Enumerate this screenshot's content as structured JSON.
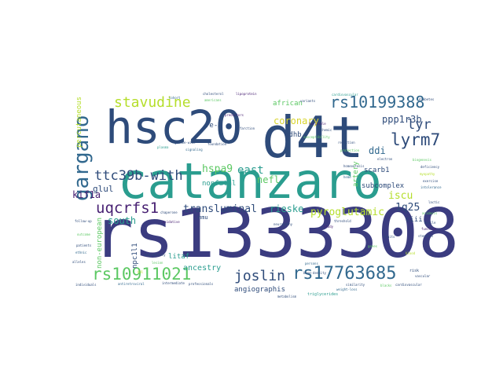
{
  "colors": {
    "background": "#ffffff",
    "dark_blue": "#2e4b7a",
    "navy": "#3b3c80",
    "teal": "#2a9d8f",
    "green": "#5cc863",
    "lime": "#b5de2b",
    "yellow": "#d8d42e",
    "purple": "#482173",
    "mid_blue": "#31688e"
  },
  "words": {
    "rs1333308": "rs1333308",
    "catanzaro": "catanzaro",
    "hsc20": "hsc20",
    "d4t": "d4t",
    "gargano": "gargano",
    "stavudine": "stavudine",
    "rs10199388": "rs10199388",
    "lyrm7": "lyrm7",
    "lyr": "lyr",
    "ttc39b_with": "ttc39b-with",
    "uqcrfs1": "uqcrfs1",
    "rs10911021": "rs10911021",
    "joslin": "joslin",
    "rs17763685": "rs17763685",
    "coronary": "coronary",
    "pyroglutamic": "pyroglutamic",
    "transluminal": "transluminal",
    "hspa9": "hspa9",
    "east": "east",
    "nefl": "nefl",
    "rieske": "rieske",
    "kif1a": "kif1a",
    "glul": "glul",
    "south": "south",
    "iscu": "iscu",
    "ddi": "ddi",
    "ppp1r3b": "ppp1r3b",
    "1q25": "1q25",
    "sdhb": "sdhb",
    "african": "african",
    "angiographis": "angiographis",
    "ancestry": "ancestry",
    "non_european": "non-european",
    "percutaneous": "percutaneous",
    "nonfatal": "nonfatal",
    "artery": "artery",
    "subcomplex": "subcomplex",
    "scarb1": "scarb1",
    "litaf": "litaf",
    "npc1l1": "npc1l1",
    "fe_s": "fe-s",
    "mmu": "mmu",
    "ciii": "ciii",
    "triglycerides": "triglycerides",
    "metabolism": "metabolism",
    "professionals": "professionals",
    "stenosis": "stenosis",
    "vascular": "vascular",
    "blood": "blood",
    "risk": "risk",
    "cardiovascular": "cardiovascular",
    "reduction": "reduction",
    "lipoprotein": "lipoprotein",
    "cholesterol": "cholesterol",
    "americans": "americans",
    "diabetes": "diabetes",
    "cohort": "cohort",
    "variants": "variants",
    "individuals": "individuals",
    "associated": "associated",
    "signaling": "signaling",
    "plasma": "plasma",
    "genome_wide": "genome-wide",
    "susceptibility": "susceptibility",
    "heritable": "heritable",
    "ischemic": "ischemic",
    "similarity": "similarity",
    "blacks": "blacks",
    "weight_loss": "weight-loss",
    "coenzyme": "coenzyme",
    "ubiquinol": "ubiquinol",
    "respiratory": "respiratory",
    "neuropathy": "neuropathy",
    "mitochondrial": "mitochondrial",
    "antiretroviral": "antiretroviral",
    "drug": "drug",
    "hiv": "hiv",
    "chaperone": "chaperone",
    "oxidative": "oxidative",
    "phosphorylation": "phosphorylation",
    "frequency": "frequency",
    "cytochrome": "cytochrome",
    "reductase": "reductase",
    "complex": "complex",
    "iron_sulfur": "iron-sulfur",
    "cluster": "cluster",
    "assembly": "assembly",
    "neurodegeneration": "neurodegeneration",
    "kinesin": "kinesin",
    "motor": "motor",
    "axonal": "axonal",
    "transport": "transport",
    "spastic": "spastic",
    "paraplegia": "paraplegia",
    "glutamine": "glutamine",
    "synthetase": "synthetase",
    "glutamate": "glutamate",
    "ammonia": "ammonia",
    "detoxification": "detoxification",
    "threshold": "threshold",
    "reverse": "reverse",
    "cellular": "cellular",
    "receptor": "receptor",
    "hdl": "hdl",
    "ldl": "ldl",
    "lesion": "lesion",
    "angioplasty": "angioplasty",
    "bone_density": "bone-density",
    "intermediate": "intermediate",
    "protein": "protein",
    "sodium": "sodium",
    "foundation": "foundation",
    "predictors": "predictors",
    "infarction": "infarction",
    "follow_up": "follow-up",
    "outcome": "outcome",
    "patients": "patients",
    "persons": "persons",
    "ethnic": "ethnic",
    "enzyme": "enzyme",
    "defects": "defects",
    "alleles": "alleles",
    "traits": "traits",
    "genes": "genes",
    "loci": "loci",
    "mapping": "mapping",
    "study": "study",
    "analysis": "analysis",
    "effect": "effect",
    "region": "region",
    "level": "level",
    "levels": "levels",
    "total": "total",
    "ratio": "ratio",
    "glucose": "glucose",
    "insulin": "insulin",
    "obesity": "obesity",
    "subtype": "subtype",
    "incidence": "incidence",
    "survival": "survival",
    "mortality": "mortality",
    "event": "event",
    "events": "events",
    "trial": "trial",
    "therapy": "therapy",
    "treatment": "treatment",
    "dosage": "dosage",
    "toxicity": "toxicity",
    "peripheral": "peripheral",
    "distal": "distal",
    "sensory": "sensory",
    "nerve": "nerve",
    "fiber": "fiber",
    "myelin": "myelin",
    "protection": "protection",
    "heme": "heme",
    "electron": "electron",
    "carrier": "carrier",
    "biogenesis": "biogenesis",
    "homeostasis": "homeostasis",
    "deficiency": "deficiency",
    "myopathy": "myopathy",
    "exercise": "exercise",
    "intolerance": "intolerance",
    "lactic": "lactic",
    "acidosis": "acidosis",
    "muscle": "muscle",
    "function": "function",
    "subunit": "subunit",
    "catalytic": "catalytic",
    "ligation": "ligation",
    "ubiquitin": "ubiquitin",
    "inducible": "inducible",
    "tnf": "tnf",
    "factor": "factor",
    "transcription": "transcription",
    "absorption": "absorption",
    "intestinal": "intestinal",
    "sterol": "sterol",
    "uptake": "uptake",
    "ezetimibe": "ezetimibe",
    "target": "target",
    "glycogen": "glycogen",
    "phosphatase": "phosphatase",
    "regulatory": "regulatory",
    "hepatic": "hepatic",
    "fasting": "fasting",
    "clinical": "clinical",
    "population": "population",
    "european": "european",
    "origin": "origin",
    "sample": "sample",
    "replication": "replication",
    "italian": "italian",
    "calabria": "calabria",
    "coronary_artery": "coronary-artery",
    "disease": "disease",
    "gene": "gene",
    "polymorphism": "polymorphism"
  }
}
